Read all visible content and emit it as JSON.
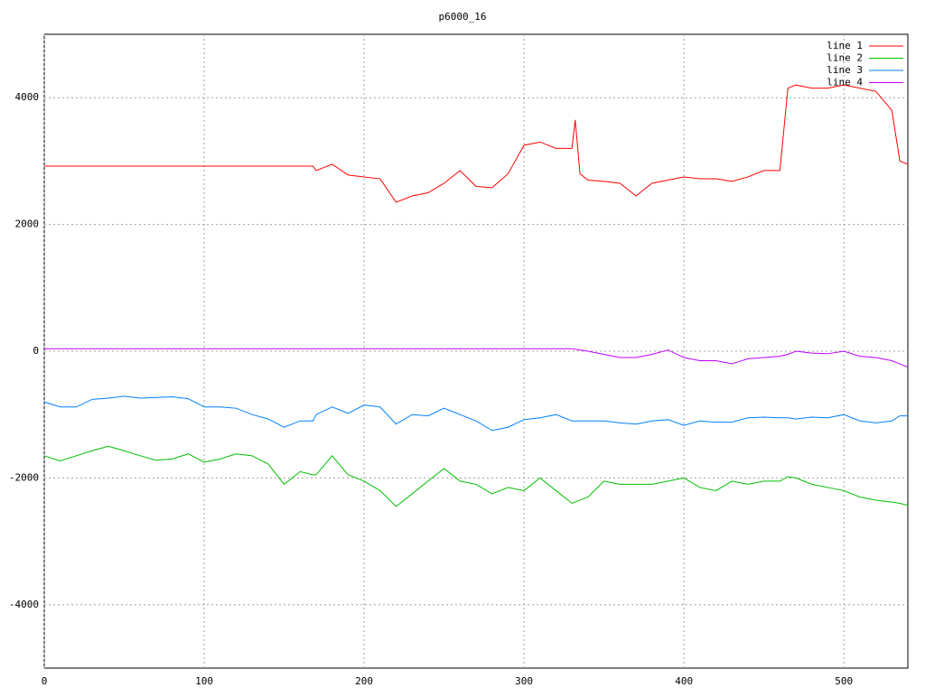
{
  "chart_data": {
    "type": "line",
    "title": "p6000_16",
    "x": [
      0,
      10,
      20,
      30,
      40,
      50,
      60,
      70,
      80,
      90,
      100,
      110,
      120,
      130,
      140,
      150,
      160,
      168,
      170,
      180,
      190,
      200,
      210,
      220,
      230,
      240,
      250,
      260,
      270,
      280,
      290,
      300,
      310,
      320,
      330,
      332,
      335,
      340,
      350,
      360,
      370,
      380,
      390,
      400,
      410,
      420,
      430,
      440,
      450,
      460,
      465,
      470,
      480,
      490,
      500,
      510,
      520,
      530,
      535,
      540
    ],
    "series": [
      {
        "name": "line 1",
        "color": "#ff0000",
        "values": [
          2920,
          2920,
          2920,
          2920,
          2920,
          2920,
          2920,
          2920,
          2920,
          2920,
          2920,
          2920,
          2920,
          2920,
          2920,
          2920,
          2920,
          2920,
          2850,
          2950,
          2780,
          2750,
          2720,
          2350,
          2450,
          2500,
          2650,
          2850,
          2600,
          2580,
          2800,
          3250,
          3300,
          3200,
          3200,
          3650,
          2800,
          2700,
          2680,
          2650,
          2450,
          2650,
          2700,
          2750,
          2720,
          2720,
          2680,
          2750,
          2850,
          2850,
          4150,
          4200,
          4150,
          4150,
          4200,
          4150,
          4100,
          3800,
          3000,
          2950
        ]
      },
      {
        "name": "line 2",
        "color": "#00c000",
        "values": [
          -1650,
          -1730,
          -1650,
          -1570,
          -1500,
          -1570,
          -1650,
          -1720,
          -1700,
          -1620,
          -1750,
          -1700,
          -1620,
          -1650,
          -1780,
          -2100,
          -1900,
          -1950,
          -1950,
          -1650,
          -1950,
          -2050,
          -2200,
          -2450,
          -2250,
          -2050,
          -1850,
          -2050,
          -2100,
          -2250,
          -2150,
          -2200,
          -2000,
          -2200,
          -2400,
          -2380,
          -2350,
          -2300,
          -2050,
          -2100,
          -2100,
          -2100,
          -2050,
          -2000,
          -2150,
          -2200,
          -2050,
          -2100,
          -2050,
          -2050,
          -1980,
          -2000,
          -2100,
          -2150,
          -2200,
          -2300,
          -2350,
          -2380,
          -2400,
          -2430
        ]
      },
      {
        "name": "line 3",
        "color": "#0080ff",
        "values": [
          -800,
          -880,
          -880,
          -760,
          -740,
          -710,
          -740,
          -730,
          -720,
          -750,
          -880,
          -880,
          -900,
          -1000,
          -1070,
          -1200,
          -1100,
          -1100,
          -1000,
          -880,
          -980,
          -850,
          -880,
          -1150,
          -1000,
          -1020,
          -900,
          -1000,
          -1100,
          -1250,
          -1200,
          -1080,
          -1050,
          -1000,
          -1100,
          -1100,
          -1100,
          -1100,
          -1100,
          -1130,
          -1150,
          -1100,
          -1080,
          -1170,
          -1100,
          -1120,
          -1120,
          -1050,
          -1040,
          -1050,
          -1050,
          -1070,
          -1040,
          -1050,
          -1000,
          -1100,
          -1130,
          -1100,
          -1020,
          -1020
        ]
      },
      {
        "name": "line 4",
        "color": "#c000ff",
        "values": [
          40,
          40,
          40,
          40,
          40,
          40,
          40,
          40,
          40,
          40,
          40,
          40,
          40,
          40,
          40,
          40,
          40,
          40,
          40,
          40,
          40,
          40,
          40,
          40,
          40,
          40,
          40,
          40,
          40,
          40,
          40,
          40,
          40,
          40,
          40,
          30,
          20,
          0,
          -50,
          -100,
          -100,
          -50,
          20,
          -100,
          -150,
          -150,
          -200,
          -120,
          -100,
          -80,
          -50,
          0,
          -30,
          -40,
          0,
          -80,
          -100,
          -150,
          -200,
          -250
        ]
      }
    ],
    "xlim": [
      0,
      540
    ],
    "xticks": [
      0,
      100,
      200,
      300,
      400,
      500
    ],
    "ylim": [
      -5000,
      5000
    ],
    "yticks": [
      -4000,
      -2000,
      0,
      2000,
      4000
    ],
    "grid": true,
    "legend": "top-right"
  }
}
